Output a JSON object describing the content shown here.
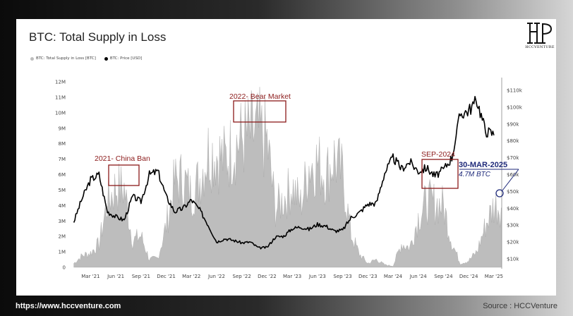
{
  "title": "BTC: Total Supply in Loss",
  "logo": {
    "name": "HCCVENTURE",
    "icon": "hcc-monogram-logo"
  },
  "legend": [
    {
      "label": "BTC: Total Supply in Loss [BTC]",
      "color": "#bdbdbd"
    },
    {
      "label": "BTC: Price [USD]",
      "color": "#000000"
    }
  ],
  "footer": {
    "website": "https://www.hccventure.com",
    "source": "Source : HCCVenture"
  },
  "annotations": [
    {
      "label": "2021- China Ban",
      "color": "#8b1a1a"
    },
    {
      "label": "2022- Bear Market",
      "color": "#8b1a1a"
    },
    {
      "label": "SEP-2024",
      "color": "#8b1a1a"
    },
    {
      "label": "30-MAR-2025",
      "color": "#1f2a7a"
    },
    {
      "label": "4.7M BTC",
      "color": "#1f2a7a"
    }
  ],
  "chart_data": {
    "type": "area",
    "title": "BTC: Total Supply in Loss",
    "x_tick_labels": [
      "Mar '21",
      "Jun '21",
      "Sep '21",
      "Dec '21",
      "Mar '22",
      "Jun '22",
      "Sep '22",
      "Dec '22",
      "Mar '23",
      "Jun '23",
      "Sep '23",
      "Dec '23",
      "Mar '24",
      "Jun '24",
      "Sep '24",
      "Dec '24",
      "Mar '25"
    ],
    "y_left_ticks": [
      "0",
      "1M",
      "2M",
      "3M",
      "4M",
      "5M",
      "6M",
      "7M",
      "8M",
      "9M",
      "10M",
      "11M",
      "12M"
    ],
    "y_left_range": [
      0,
      12000000
    ],
    "y_right_ticks": [
      "$10k",
      "$20k",
      "$30k",
      "$40k",
      "$50k",
      "$60k",
      "$70k",
      "$80k",
      "$90k",
      "$100k",
      "$110k"
    ],
    "y_right_range": [
      5000,
      115000
    ],
    "series": [
      {
        "name": "BTC: Total Supply in Loss [BTC]",
        "axis": "left",
        "x": [
          "2021-01",
          "2021-02",
          "2021-03",
          "2021-04",
          "2021-05",
          "2021-06",
          "2021-07",
          "2021-08",
          "2021-09",
          "2021-10",
          "2021-11",
          "2021-12",
          "2022-01",
          "2022-02",
          "2022-03",
          "2022-04",
          "2022-05",
          "2022-06",
          "2022-07",
          "2022-08",
          "2022-09",
          "2022-10",
          "2022-11",
          "2022-12",
          "2023-01",
          "2023-02",
          "2023-03",
          "2023-04",
          "2023-05",
          "2023-06",
          "2023-07",
          "2023-08",
          "2023-09",
          "2023-10",
          "2023-11",
          "2023-12",
          "2024-01",
          "2024-02",
          "2024-03",
          "2024-04",
          "2024-05",
          "2024-06",
          "2024-07",
          "2024-08",
          "2024-09",
          "2024-10",
          "2024-11",
          "2024-12",
          "2025-01",
          "2025-02",
          "2025-03"
        ],
        "values": [
          300000,
          900000,
          1100000,
          1800000,
          5000000,
          6100000,
          6000000,
          2000000,
          2400000,
          600000,
          700000,
          3200000,
          6500000,
          6800000,
          5500000,
          6800000,
          8800000,
          8600000,
          8200000,
          9200000,
          9800000,
          10100000,
          10300000,
          9500000,
          4500000,
          5200000,
          6200000,
          4800000,
          7800000,
          8000000,
          7000000,
          8300000,
          7000000,
          2500000,
          1000000,
          300000,
          600000,
          200000,
          100000,
          1800000,
          1500000,
          3800000,
          5000000,
          4900000,
          4700000,
          1900000,
          300000,
          500000,
          1200000,
          3200000,
          4700000
        ]
      },
      {
        "name": "BTC: Price [USD]",
        "axis": "right",
        "x": [
          "2021-01",
          "2021-02",
          "2021-03",
          "2021-04",
          "2021-05",
          "2021-06",
          "2021-07",
          "2021-08",
          "2021-09",
          "2021-10",
          "2021-11",
          "2021-12",
          "2022-01",
          "2022-02",
          "2022-03",
          "2022-04",
          "2022-05",
          "2022-06",
          "2022-07",
          "2022-08",
          "2022-09",
          "2022-10",
          "2022-11",
          "2022-12",
          "2023-01",
          "2023-02",
          "2023-03",
          "2023-04",
          "2023-05",
          "2023-06",
          "2023-07",
          "2023-08",
          "2023-09",
          "2023-10",
          "2023-11",
          "2023-12",
          "2024-01",
          "2024-02",
          "2024-03",
          "2024-04",
          "2024-05",
          "2024-06",
          "2024-07",
          "2024-08",
          "2024-09",
          "2024-10",
          "2024-11",
          "2024-12",
          "2025-01",
          "2025-02",
          "2025-03"
        ],
        "values": [
          32000,
          46000,
          57000,
          60000,
          38000,
          35000,
          33000,
          47000,
          44000,
          60000,
          62000,
          47000,
          38000,
          40000,
          45000,
          39000,
          30000,
          20000,
          22000,
          21000,
          19500,
          20000,
          16500,
          16800,
          23000,
          23500,
          28000,
          29000,
          27500,
          30500,
          29500,
          26500,
          27000,
          34500,
          37500,
          42500,
          43000,
          61000,
          70000,
          63500,
          67500,
          62000,
          64000,
          59000,
          63000,
          70000,
          96000,
          98000,
          104000,
          86000,
          84000
        ]
      }
    ],
    "annotations": [
      "2021- China Ban",
      "2022- Bear Market",
      "SEP-2024",
      "30-MAR-2025",
      "4.7M BTC"
    ],
    "grid": false,
    "legend_position": "top-left"
  }
}
